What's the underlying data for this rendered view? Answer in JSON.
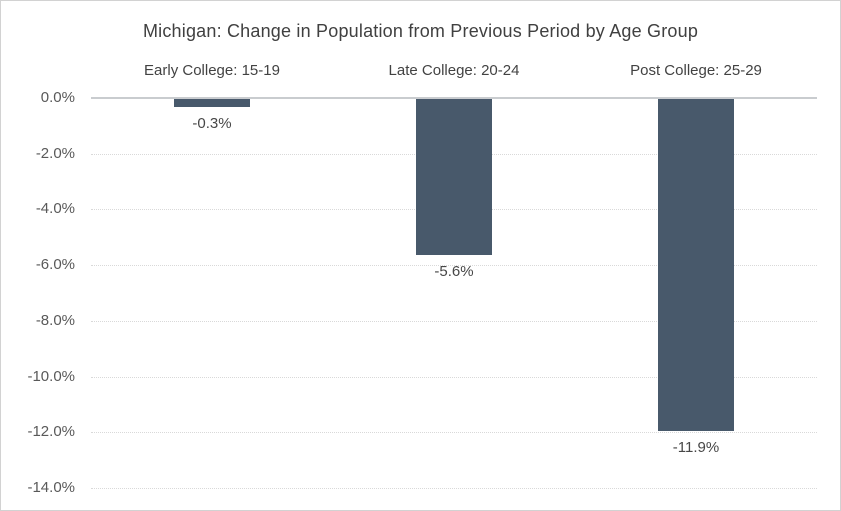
{
  "chart_data": {
    "type": "bar",
    "title": "Michigan: Change in Population from Previous Period by Age Group",
    "categories": [
      "Early College: 15-19",
      "Late College: 20-24",
      "Post College: 25-29"
    ],
    "values": [
      -0.3,
      -5.6,
      -11.9
    ],
    "value_labels": [
      "-0.3%",
      "-5.6%",
      "-11.9%"
    ],
    "y_ticks": [
      0,
      -2,
      -4,
      -6,
      -8,
      -10,
      -12,
      -14
    ],
    "y_tick_labels": [
      "0.0%",
      "-2.0%",
      "-4.0%",
      "-6.0%",
      "-8.0%",
      "-10.0%",
      "-12.0%",
      "-14.0%"
    ],
    "ylim": [
      -14,
      0
    ],
    "xlabel": "",
    "ylabel": "",
    "legend": "none",
    "grid": "horizontal-dotted",
    "colors": {
      "bar": "#48596b",
      "gridline": "#d9d9d9",
      "zero_line": "#c9cccf",
      "title_text": "#404040",
      "tick_text": "#595959",
      "data_label_text": "#474747",
      "border": "#d2d2d2",
      "background": "#ffffff"
    }
  }
}
